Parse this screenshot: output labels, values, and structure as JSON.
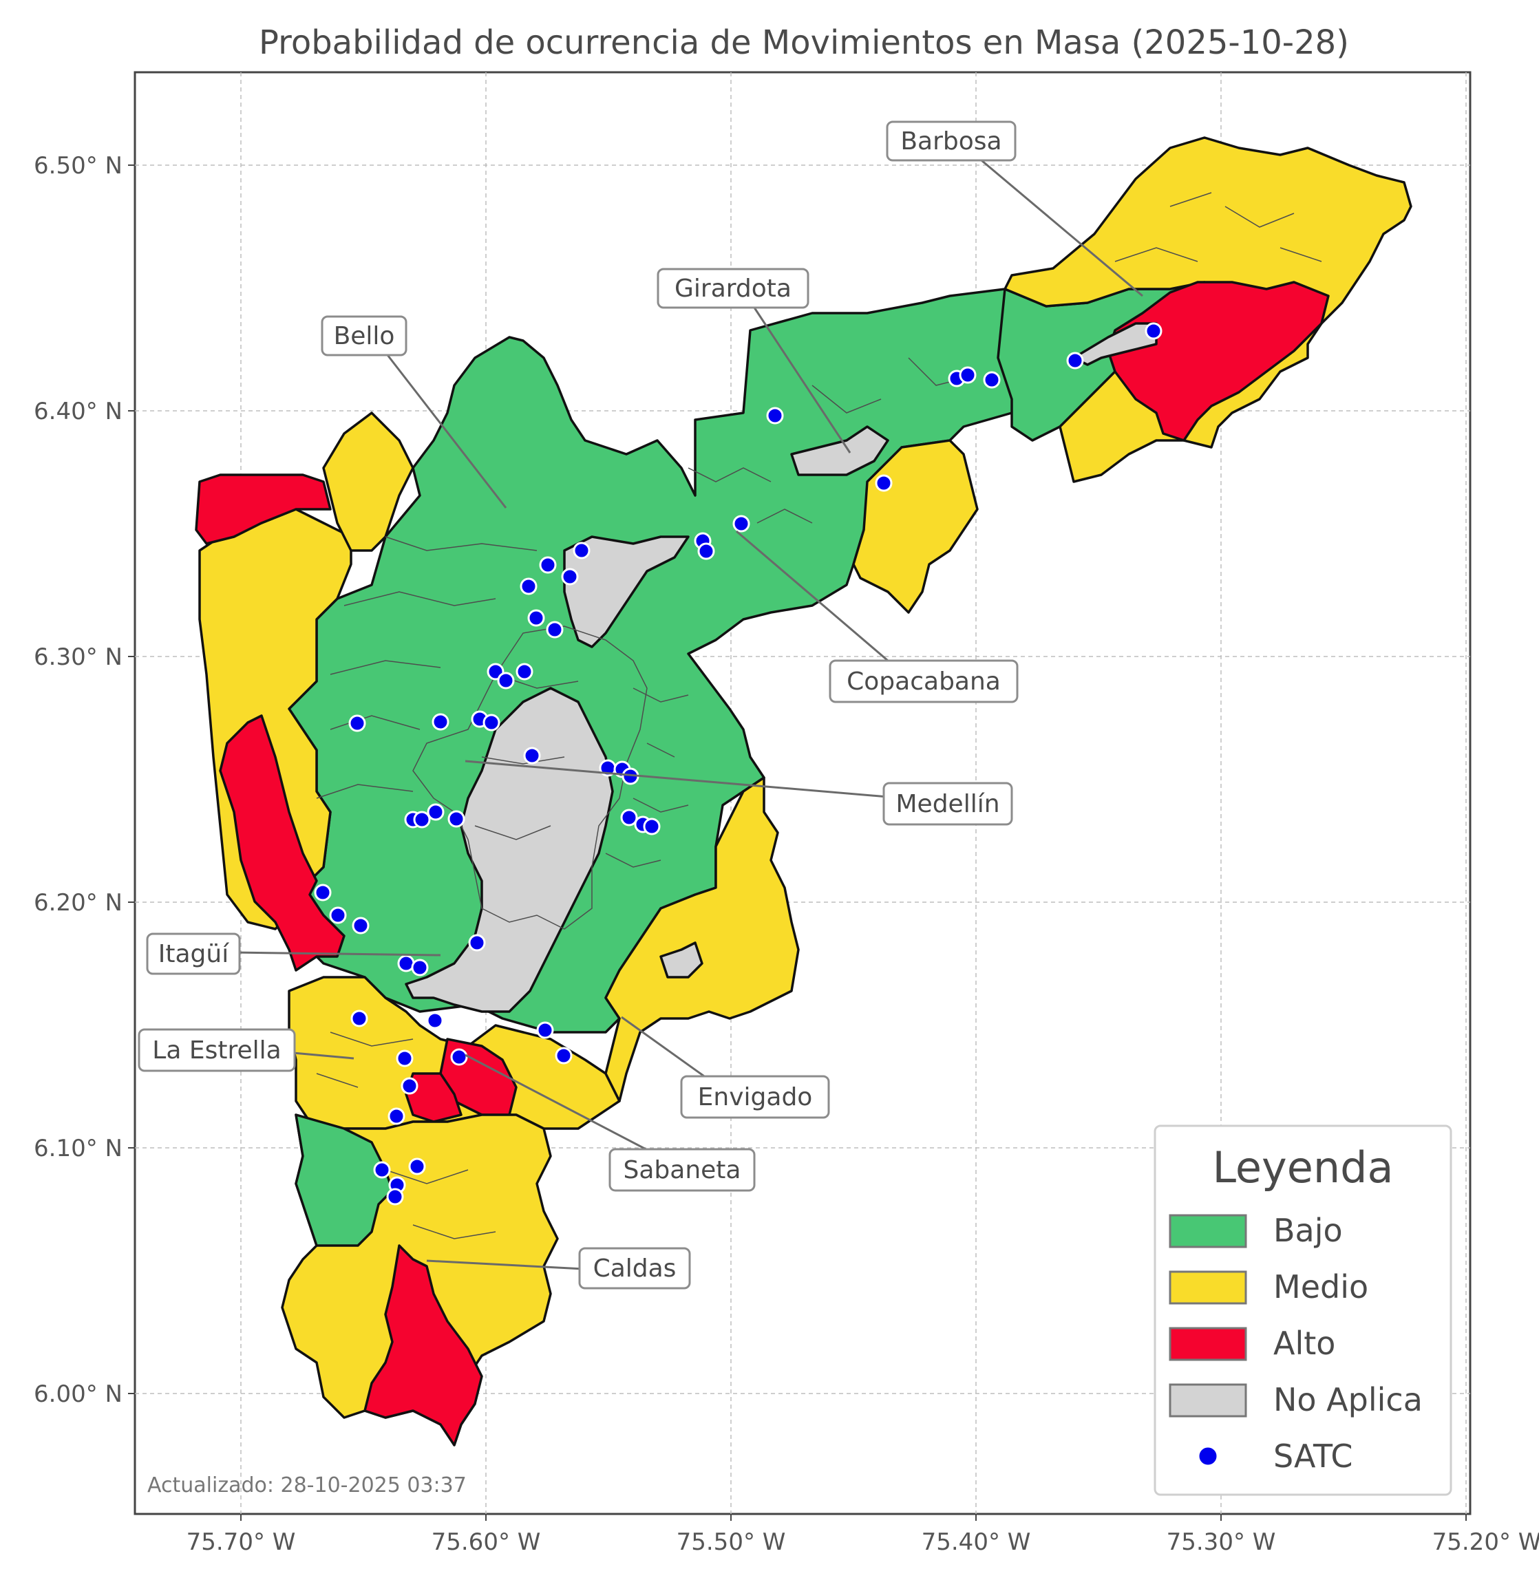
{
  "title": "Probabilidad de ocurrencia de Movimientos en Masa (2025-10-28)",
  "axes": {
    "lat_ticks": [
      "6.50° N",
      "6.40° N",
      "6.30° N",
      "6.20° N",
      "6.10° N",
      "6.00° N"
    ],
    "lon_ticks": [
      "75.70° W",
      "75.60° W",
      "75.50° W",
      "75.40° W",
      "75.30° W",
      "75.20° W"
    ]
  },
  "municipalities": {
    "barbosa": "Barbosa",
    "girardota": "Girardota",
    "bello": "Bello",
    "copacabana": "Copacabana",
    "medellin": "Medellín",
    "itagui": "Itagüí",
    "la_estrella": "La Estrella",
    "envigado": "Envigado",
    "sabaneta": "Sabaneta",
    "caldas": "Caldas"
  },
  "legend": {
    "title": "Leyenda",
    "bajo": "Bajo",
    "medio": "Medio",
    "alto": "Alto",
    "no_aplica": "No Aplica",
    "satc": "SATC"
  },
  "colors": {
    "bajo": "#48c774",
    "medio": "#f9dc2a",
    "alto": "#f5032f",
    "no_aplica": "#d3d3d3",
    "satc": "#0000ee"
  },
  "updated": "Actualizado: 28-10-2025 03:37"
}
